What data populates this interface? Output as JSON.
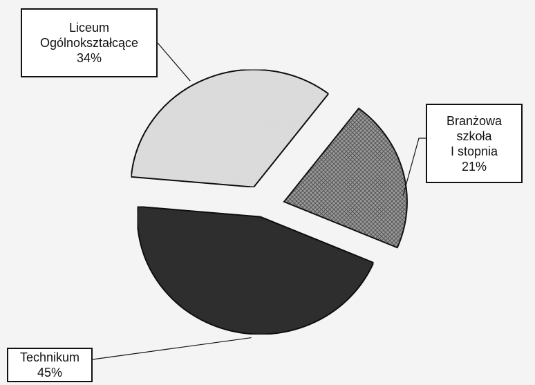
{
  "chart_data": {
    "type": "pie",
    "exploded": true,
    "slices": [
      {
        "label_lines": [
          "Liceum",
          "Ogólnokształcące"
        ],
        "percent_label": "34%",
        "value": 34,
        "fill": "#e1e1e1",
        "texture": "light-stone"
      },
      {
        "label_lines": [
          "Branżowa",
          "szkoła",
          "I stopnia"
        ],
        "percent_label": "21%",
        "value": 21,
        "fill": "#8c8c8c",
        "texture": "crosshatch"
      },
      {
        "label_lines": [
          "Technikum"
        ],
        "percent_label": "45%",
        "value": 45,
        "fill": "#2f2f2f",
        "texture": "dark-stone"
      }
    ]
  }
}
